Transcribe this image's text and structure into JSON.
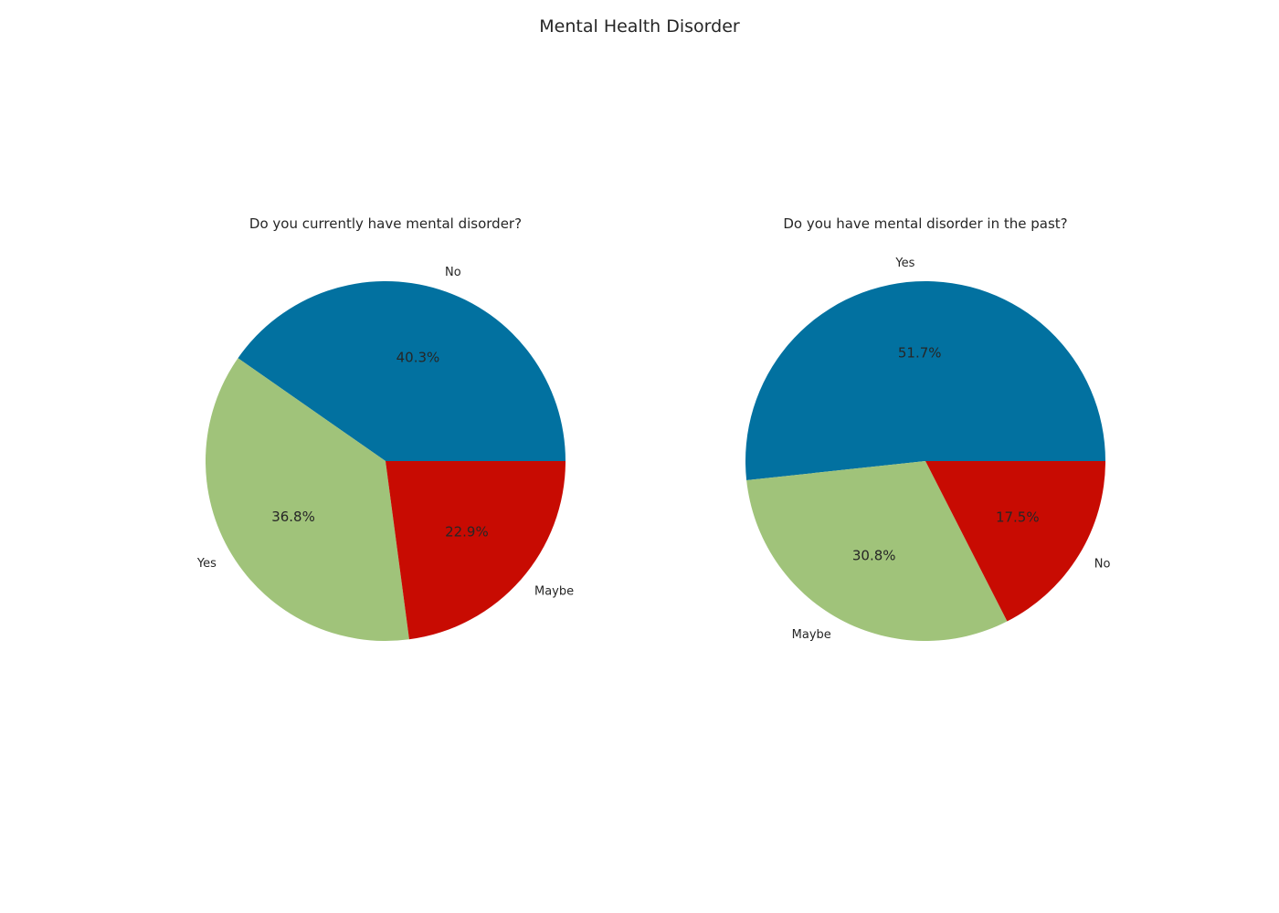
{
  "figure": {
    "title": "Mental Health Disorder"
  },
  "colors": {
    "blue": "#0271a0",
    "green": "#a0c37a",
    "red": "#c80b02"
  },
  "chart_data": [
    {
      "type": "pie",
      "title": "Do you currently have mental disorder?",
      "labels": [
        "No",
        "Yes",
        "Maybe"
      ],
      "values": [
        40.3,
        36.8,
        22.9
      ],
      "value_labels": [
        "40.3%",
        "36.8%",
        "22.9%"
      ],
      "colors": [
        "#0271a0",
        "#a0c37a",
        "#c80b02"
      ]
    },
    {
      "type": "pie",
      "title": "Do you have mental disorder in the past?",
      "labels": [
        "Yes",
        "Maybe",
        "No"
      ],
      "values": [
        51.7,
        30.8,
        17.5
      ],
      "value_labels": [
        "51.7%",
        "30.8%",
        "17.5%"
      ],
      "colors": [
        "#0271a0",
        "#a0c37a",
        "#c80b02"
      ]
    }
  ]
}
